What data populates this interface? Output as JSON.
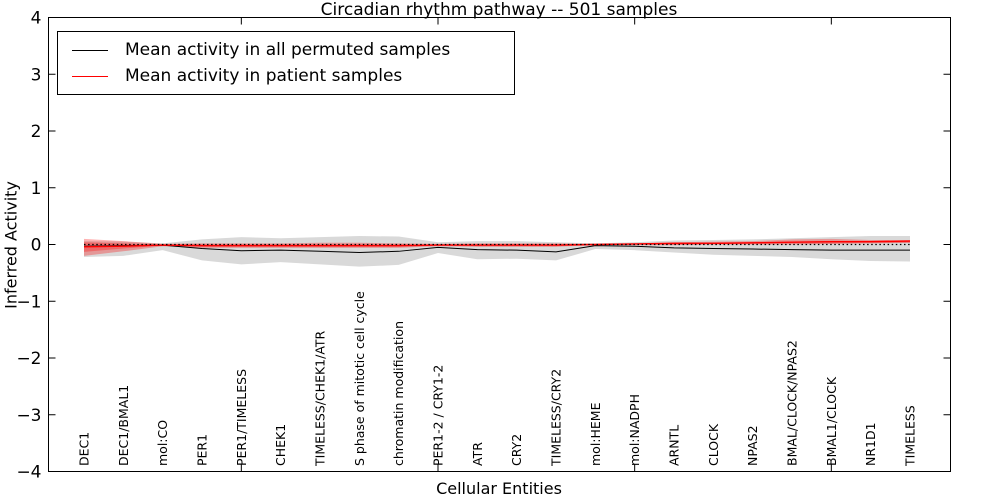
{
  "figure": {
    "title": "Circadian rhythm pathway -- 501 samples",
    "xlabel": "Cellular Entities",
    "ylabel": "Inferred Activity"
  },
  "legend": {
    "entries": [
      {
        "label": "Mean activity in all permuted samples",
        "color": "#000000"
      },
      {
        "label": "Mean activity in patient samples",
        "color": "#ff0000"
      }
    ]
  },
  "chart_data": {
    "type": "line",
    "title": "Circadian rhythm pathway -- 501 samples",
    "xlabel": "Cellular Entities",
    "ylabel": "Inferred Activity",
    "ylim": [
      -4,
      4
    ],
    "yticks": [
      -4,
      -3,
      -2,
      -1,
      0,
      1,
      2,
      3,
      4
    ],
    "ytick_labels": [
      "−4",
      "−3",
      "−2",
      "−1",
      "0",
      "1",
      "2",
      "3",
      "4"
    ],
    "xtick_values": [
      5,
      10,
      15,
      20
    ],
    "xtick_indices": [
      4,
      9,
      14,
      19
    ],
    "grid": false,
    "legend_position": "upper left",
    "categories": [
      "DEC1",
      "DEC1/BMAL1",
      "mol:CO",
      "PER1",
      "PER1/TIMELESS",
      "CHEK1",
      "TIMELESS/CHEK1/ATR",
      "S phase of mitotic cell cycle",
      "chromatin modification",
      "PER1-2 / CRY1-2",
      "ATR",
      "CRY2",
      "TIMELESS/CRY2",
      "mol:HEME",
      "mol:NADPH",
      "ARNTL",
      "CLOCK",
      "NPAS2",
      "BMAL/CLOCK/NPAS2",
      "BMAL1/CLOCK",
      "NR1D1",
      "TIMELESS"
    ],
    "series": [
      {
        "name": "Mean activity in all permuted samples",
        "color": "#000000",
        "width": 1.0,
        "values": [
          -0.03,
          -0.02,
          -0.01,
          -0.07,
          -0.11,
          -0.1,
          -0.12,
          -0.14,
          -0.12,
          -0.05,
          -0.09,
          -0.1,
          -0.13,
          -0.02,
          -0.03,
          -0.06,
          -0.07,
          -0.08,
          -0.09,
          -0.1,
          -0.1,
          -0.1
        ]
      },
      {
        "name": "Mean activity in patient samples",
        "color": "#ff0000",
        "width": 1.4,
        "values": [
          -0.04,
          -0.03,
          -0.01,
          -0.02,
          -0.02,
          -0.02,
          -0.02,
          -0.02,
          -0.02,
          -0.01,
          -0.01,
          -0.01,
          -0.01,
          0.0,
          0.01,
          0.02,
          0.02,
          0.03,
          0.04,
          0.05,
          0.05,
          0.06
        ]
      }
    ],
    "bands": [
      {
        "name": "permuted-range",
        "color": "rgba(128,128,128,0.30)",
        "upper": [
          0.06,
          0.05,
          0.02,
          0.09,
          0.13,
          0.11,
          0.13,
          0.15,
          0.14,
          0.04,
          0.06,
          0.06,
          0.04,
          0.02,
          0.04,
          0.07,
          0.08,
          0.09,
          0.11,
          0.13,
          0.15,
          0.15
        ],
        "lower": [
          -0.22,
          -0.2,
          -0.1,
          -0.28,
          -0.35,
          -0.31,
          -0.35,
          -0.39,
          -0.36,
          -0.15,
          -0.26,
          -0.25,
          -0.28,
          -0.08,
          -0.1,
          -0.14,
          -0.18,
          -0.2,
          -0.22,
          -0.26,
          -0.29,
          -0.3
        ]
      },
      {
        "name": "patient-range-outer",
        "color": "rgba(255,0,0,0.30)",
        "upper": [
          0.1,
          0.06,
          0.01,
          0.02,
          0.02,
          0.02,
          0.03,
          0.03,
          0.02,
          0.01,
          0.02,
          0.02,
          0.02,
          0.01,
          0.02,
          0.04,
          0.05,
          0.06,
          0.09,
          0.1,
          0.08,
          0.08
        ],
        "lower": [
          -0.2,
          -0.12,
          -0.03,
          -0.06,
          -0.06,
          -0.06,
          -0.06,
          -0.06,
          -0.06,
          -0.03,
          -0.04,
          -0.04,
          -0.04,
          -0.01,
          -0.01,
          -0.01,
          0.0,
          0.0,
          0.0,
          0.01,
          0.02,
          0.03
        ]
      },
      {
        "name": "patient-range-inner",
        "color": "rgba(255,0,0,0.30)",
        "upper": [
          0.04,
          0.02,
          0.0,
          0.0,
          0.0,
          0.0,
          0.0,
          0.0,
          0.0,
          0.0,
          0.0,
          0.0,
          0.0,
          0.0,
          0.01,
          0.02,
          0.03,
          0.04,
          0.05,
          0.06,
          0.06,
          0.06
        ],
        "lower": [
          -0.13,
          -0.07,
          -0.02,
          -0.04,
          -0.04,
          -0.04,
          -0.04,
          -0.04,
          -0.04,
          -0.02,
          -0.03,
          -0.03,
          -0.03,
          -0.01,
          0.0,
          0.0,
          0.01,
          0.01,
          0.02,
          0.02,
          0.03,
          0.03
        ]
      }
    ],
    "zero_line": {
      "value": 0,
      "color": "#000000",
      "style": "dotted"
    }
  }
}
